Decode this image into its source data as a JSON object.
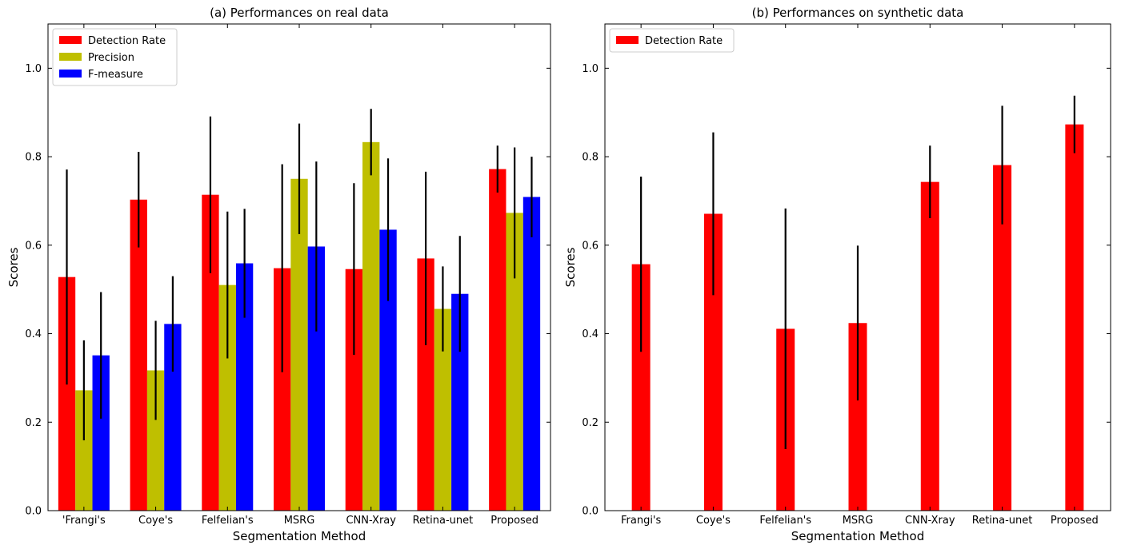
{
  "chart_data": [
    {
      "type": "bar",
      "title": "(a) Performances on real data",
      "xlabel": "Segmentation Method",
      "ylabel": "Scores",
      "ylim": [
        0,
        1.1
      ],
      "yticks": [
        "0.0",
        "0.2",
        "0.4",
        "0.6",
        "0.8",
        "1.0"
      ],
      "categories": [
        "'Frangi's",
        "Coye's",
        "Felfelian's",
        "MSRG",
        "CNN-Xray",
        "Retina-unet",
        "Proposed"
      ],
      "legend_position": "top-left",
      "grid": false,
      "series": [
        {
          "name": "Detection Rate",
          "color": "#ff0000",
          "values": [
            0.528,
            0.703,
            0.714,
            0.548,
            0.546,
            0.57,
            0.772
          ],
          "errors": [
            0.243,
            0.108,
            0.177,
            0.235,
            0.194,
            0.196,
            0.053
          ]
        },
        {
          "name": "Precision",
          "color": "#bfbf00",
          "values": [
            0.272,
            0.317,
            0.51,
            0.75,
            0.833,
            0.456,
            0.673
          ],
          "errors": [
            0.113,
            0.112,
            0.166,
            0.125,
            0.075,
            0.096,
            0.148
          ]
        },
        {
          "name": "F-measure",
          "color": "#0000ff",
          "values": [
            0.351,
            0.422,
            0.559,
            0.597,
            0.635,
            0.49,
            0.709
          ],
          "errors": [
            0.143,
            0.108,
            0.123,
            0.192,
            0.161,
            0.131,
            0.091
          ]
        }
      ]
    },
    {
      "type": "bar",
      "title": "(b) Performances on synthetic data",
      "xlabel": "Segmentation Method",
      "ylabel": "Scores",
      "ylim": [
        0,
        1.1
      ],
      "yticks": [
        "0.0",
        "0.2",
        "0.4",
        "0.6",
        "0.8",
        "1.0"
      ],
      "categories": [
        "Frangi's",
        "Coye's",
        "Felfelian's",
        "MSRG",
        "CNN-Xray",
        "Retina-unet",
        "Proposed"
      ],
      "legend_position": "top-left",
      "grid": false,
      "series": [
        {
          "name": "Detection Rate",
          "color": "#ff0000",
          "values": [
            0.557,
            0.671,
            0.411,
            0.424,
            0.743,
            0.781,
            0.873
          ],
          "errors": [
            0.198,
            0.184,
            0.272,
            0.175,
            0.082,
            0.134,
            0.065
          ]
        }
      ]
    }
  ]
}
